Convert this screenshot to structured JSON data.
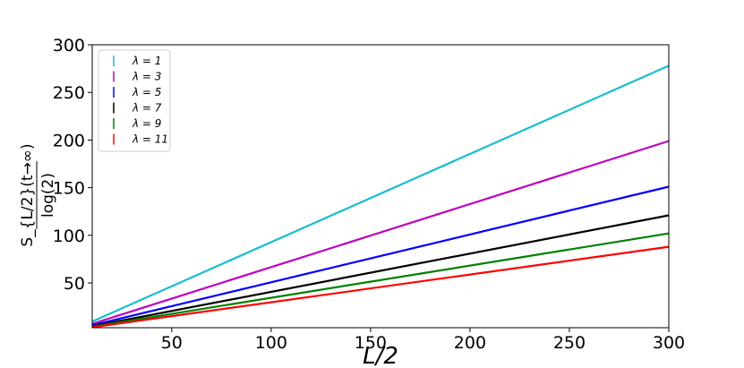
{
  "chart_data": {
    "type": "line",
    "xlabel": "L/2",
    "ylabel": {
      "numerator": "S_{L/2}(t→∞)",
      "denominator": "log(2)"
    },
    "xlim": [
      10,
      300
    ],
    "ylim": [
      3,
      300
    ],
    "xticks": [
      50,
      100,
      150,
      200,
      250,
      300
    ],
    "yticks": [
      50,
      100,
      150,
      200,
      250,
      300
    ],
    "grid": false,
    "legend_position": "top-left",
    "series": [
      {
        "name": "λ = 1",
        "color": "#17becf",
        "x": [
          10,
          300
        ],
        "y": [
          9.5,
          278
        ]
      },
      {
        "name": "λ = 3",
        "color": "#bf00bf",
        "x": [
          10,
          300
        ],
        "y": [
          7.0,
          199
        ]
      },
      {
        "name": "λ = 5",
        "color": "#0000ff",
        "x": [
          10,
          300
        ],
        "y": [
          5.5,
          151
        ]
      },
      {
        "name": "λ = 7",
        "color": "#000000",
        "x": [
          10,
          300
        ],
        "y": [
          4.5,
          121
        ]
      },
      {
        "name": "λ = 9",
        "color": "#008000",
        "x": [
          10,
          300
        ],
        "y": [
          4.0,
          102
        ]
      },
      {
        "name": "λ = 11",
        "color": "#ff0000",
        "x": [
          10,
          300
        ],
        "y": [
          3.5,
          88
        ]
      }
    ]
  }
}
